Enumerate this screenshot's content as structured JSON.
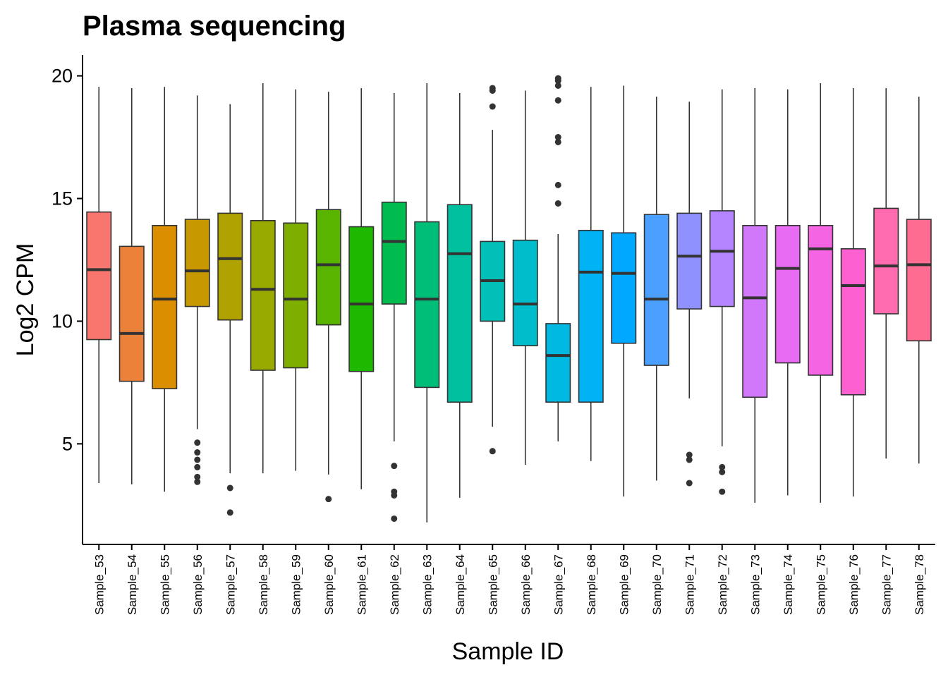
{
  "chart_data": {
    "type": "boxplot",
    "title": "Plasma sequencing",
    "xlabel": "Sample ID",
    "ylabel": "Log2 CPM",
    "ylim": [
      0.9,
      20.85
    ],
    "yticks": [
      5,
      10,
      15,
      20
    ],
    "grid": false,
    "legend": "none",
    "categories": [
      "Sample_53",
      "Sample_54",
      "Sample_55",
      "Sample_56",
      "Sample_57",
      "Sample_58",
      "Sample_59",
      "Sample_60",
      "Sample_61",
      "Sample_62",
      "Sample_63",
      "Sample_64",
      "Sample_65",
      "Sample_66",
      "Sample_67",
      "Sample_68",
      "Sample_69",
      "Sample_70",
      "Sample_71",
      "Sample_72",
      "Sample_73",
      "Sample_74",
      "Sample_75",
      "Sample_76",
      "Sample_77",
      "Sample_78"
    ],
    "colors": [
      "#F8766D",
      "#EC8239",
      "#DB8E00",
      "#C79800",
      "#B0A200",
      "#98A900",
      "#7DAE00",
      "#59B400",
      "#1EB800",
      "#00BB4E",
      "#00BE78",
      "#00C0A0",
      "#00C0B8",
      "#00BDCB",
      "#00B9E3",
      "#00B3F4",
      "#00A9FF",
      "#4B9FFF",
      "#8F91FF",
      "#B385FF",
      "#D177F9",
      "#E76BF3",
      "#F564E3",
      "#FD61D1",
      "#FF6BAE",
      "#FF6C91"
    ],
    "boxes": [
      {
        "min": 3.4,
        "q1": 9.25,
        "median": 12.1,
        "q3": 14.45,
        "max": 19.55,
        "outliers": []
      },
      {
        "min": 3.35,
        "q1": 7.55,
        "median": 9.5,
        "q3": 13.05,
        "max": 19.5,
        "outliers": []
      },
      {
        "min": 3.05,
        "q1": 7.25,
        "median": 10.9,
        "q3": 13.9,
        "max": 19.55,
        "outliers": []
      },
      {
        "min": 5.6,
        "q1": 10.6,
        "median": 12.05,
        "q3": 14.15,
        "max": 19.2,
        "outliers": [
          5.05,
          4.65,
          4.35,
          4.05,
          3.65,
          3.45
        ]
      },
      {
        "min": 3.8,
        "q1": 10.05,
        "median": 12.55,
        "q3": 14.4,
        "max": 18.85,
        "outliers": [
          3.2,
          2.2
        ]
      },
      {
        "min": 3.8,
        "q1": 8.0,
        "median": 11.3,
        "q3": 14.1,
        "max": 19.7,
        "outliers": []
      },
      {
        "min": 3.9,
        "q1": 8.1,
        "median": 10.9,
        "q3": 14.0,
        "max": 19.45,
        "outliers": []
      },
      {
        "min": 3.75,
        "q1": 9.85,
        "median": 12.3,
        "q3": 14.55,
        "max": 19.35,
        "outliers": [
          2.75
        ]
      },
      {
        "min": 3.15,
        "q1": 7.95,
        "median": 10.7,
        "q3": 13.85,
        "max": 19.5,
        "outliers": []
      },
      {
        "min": 5.1,
        "q1": 10.7,
        "median": 13.25,
        "q3": 14.85,
        "max": 19.3,
        "outliers": [
          4.1,
          3.05,
          2.9,
          1.95
        ]
      },
      {
        "min": 1.8,
        "q1": 7.3,
        "median": 10.9,
        "q3": 14.05,
        "max": 19.7,
        "outliers": []
      },
      {
        "min": 2.8,
        "q1": 6.7,
        "median": 12.75,
        "q3": 14.75,
        "max": 19.3,
        "outliers": []
      },
      {
        "min": 5.7,
        "q1": 10.0,
        "median": 11.65,
        "q3": 13.25,
        "max": 17.8,
        "outliers": [
          19.5,
          19.4,
          18.75,
          4.7
        ]
      },
      {
        "min": 4.15,
        "q1": 9.0,
        "median": 10.7,
        "q3": 13.3,
        "max": 19.4,
        "outliers": []
      },
      {
        "min": 5.1,
        "q1": 6.7,
        "median": 8.6,
        "q3": 9.9,
        "max": 13.55,
        "outliers": [
          19.9,
          19.8,
          19.6,
          19.0,
          17.5,
          17.3,
          15.55,
          14.8
        ]
      },
      {
        "min": 4.3,
        "q1": 6.7,
        "median": 12.0,
        "q3": 13.7,
        "max": 19.55,
        "outliers": []
      },
      {
        "min": 2.85,
        "q1": 9.1,
        "median": 11.95,
        "q3": 13.6,
        "max": 19.6,
        "outliers": []
      },
      {
        "min": 3.5,
        "q1": 8.2,
        "median": 10.9,
        "q3": 14.35,
        "max": 19.15,
        "outliers": []
      },
      {
        "min": 6.85,
        "q1": 10.5,
        "median": 12.65,
        "q3": 14.4,
        "max": 18.95,
        "outliers": [
          4.55,
          4.35,
          3.4
        ]
      },
      {
        "min": 4.9,
        "q1": 10.6,
        "median": 12.85,
        "q3": 14.5,
        "max": 19.45,
        "outliers": [
          4.05,
          3.85,
          3.05
        ]
      },
      {
        "min": 2.6,
        "q1": 6.9,
        "median": 10.95,
        "q3": 13.9,
        "max": 19.5,
        "outliers": []
      },
      {
        "min": 2.9,
        "q1": 8.3,
        "median": 12.15,
        "q3": 13.9,
        "max": 19.45,
        "outliers": []
      },
      {
        "min": 2.6,
        "q1": 7.8,
        "median": 12.95,
        "q3": 13.9,
        "max": 19.7,
        "outliers": []
      },
      {
        "min": 2.85,
        "q1": 7.0,
        "median": 11.45,
        "q3": 12.95,
        "max": 19.5,
        "outliers": []
      },
      {
        "min": 4.4,
        "q1": 10.3,
        "median": 12.25,
        "q3": 14.6,
        "max": 19.5,
        "outliers": []
      },
      {
        "min": 4.2,
        "q1": 9.2,
        "median": 12.3,
        "q3": 14.15,
        "max": 19.15,
        "outliers": []
      }
    ]
  }
}
